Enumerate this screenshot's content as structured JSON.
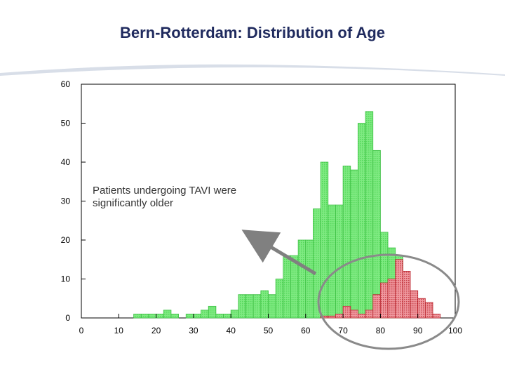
{
  "slide": {
    "title": "Bern-Rotterdam: Distribution of Age"
  },
  "annotation": {
    "text": "Patients undergoing TAVI  were significantly older"
  },
  "colors": {
    "green_bars": "#66e06a",
    "green_edge": "#3cbf42",
    "red_bars": "#e8787e",
    "red_edge": "#b8262e",
    "circle": "#8a8a8a",
    "arrow": "#808080",
    "title": "#1f2a5e"
  },
  "chart_data": {
    "type": "bar",
    "xlim": [
      0,
      100
    ],
    "ylim": [
      0,
      60
    ],
    "bin_width": 2,
    "x_ticks": [
      0,
      10,
      20,
      30,
      40,
      50,
      60,
      70,
      80,
      90,
      100
    ],
    "y_ticks": [
      0,
      10,
      20,
      30,
      40,
      50,
      60
    ],
    "x_tick_labels": [
      "0",
      "10",
      "20",
      "30",
      "40",
      "50",
      "60",
      "70",
      "80",
      "90",
      "100"
    ],
    "y_tick_labels": [
      "0",
      "10",
      "20",
      "30",
      "40",
      "50",
      "60"
    ],
    "series": [
      {
        "bin_starts": [
          14,
          16,
          18,
          20,
          22,
          24,
          26,
          28,
          30,
          32,
          34,
          36,
          38,
          40,
          42,
          44,
          46,
          48,
          50,
          52,
          54,
          56,
          58,
          60,
          62,
          64,
          66,
          68,
          70,
          72,
          74,
          76,
          78,
          80,
          82,
          84
        ],
        "values": [
          1,
          1,
          1,
          1,
          2,
          1,
          0,
          1,
          1,
          2,
          3,
          1,
          1,
          2,
          6,
          6,
          6,
          7,
          6,
          10,
          16,
          16,
          20,
          20,
          28,
          40,
          29,
          29,
          39,
          38,
          50,
          53,
          43,
          22,
          18,
          16
        ]
      },
      {
        "bin_starts": [
          64,
          66,
          68,
          70,
          72,
          74,
          76,
          78,
          80,
          82,
          84,
          86,
          88,
          90,
          92,
          94
        ],
        "values": [
          0.5,
          0.5,
          1,
          3,
          2,
          1,
          2,
          6,
          9,
          10,
          15,
          12,
          7,
          5,
          4,
          1
        ]
      }
    ]
  }
}
